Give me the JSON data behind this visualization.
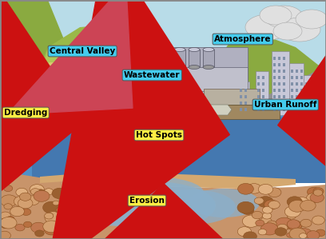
{
  "labels": {
    "central_valley": "Central Valley",
    "wastewater": "Wastewater",
    "atmosphere": "Atmosphere",
    "dredging": "Dredging",
    "urban_runoff": "Urban Runoff",
    "hot_spots": "Hot Spots",
    "erosion": "Erosion"
  },
  "colors": {
    "sky": "#b8dce8",
    "hill_left": "#8aaa40",
    "hill_mid": "#9ab848",
    "hill_right": "#8aaa40",
    "farm_green": "#b0c858",
    "farm_yellow": "#d8cc70",
    "water_blue": "#5090c8",
    "water_mid": "#4478b0",
    "water_deep": "#3060a0",
    "sediment_orange": "#c8946a",
    "sediment_tan": "#d4a870",
    "ground_brown": "#b87a50",
    "red_arrow": "#cc1111",
    "label_bg_yellow": "#ffee44",
    "label_bg_cyan": "#44ccee",
    "building_gray": "#a8a8b8",
    "building_light": "#c8c8d8",
    "cloud_gray": "#c8c8c8",
    "cloud_white": "#e0e0e0",
    "road_gray": "#909090",
    "water_underground": "#8ab0cc",
    "pier_brown": "#a08860"
  }
}
